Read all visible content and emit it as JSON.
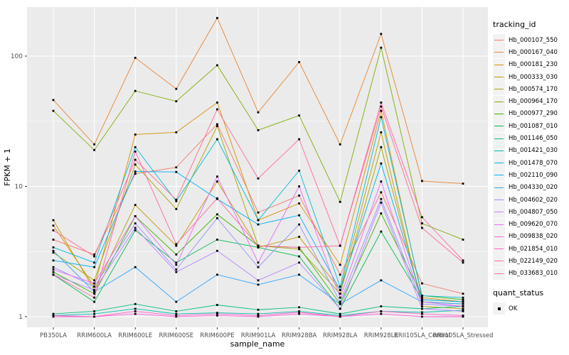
{
  "chart_data": {
    "type": "line",
    "title": "",
    "xlabel": "sample_name",
    "ylabel": "FPKM + 1",
    "y_scale": "log10",
    "y_ticks": [
      1,
      10,
      100
    ],
    "y_minor_ticks": [
      3.162,
      31.62
    ],
    "ylim": [
      1,
      230
    ],
    "grid": "on",
    "panel_bg": "#EBEBEB",
    "gridline_color": "#FFFFFF",
    "tick_label_color": "#4D4D4D",
    "point_marker": "black-square",
    "categories": [
      "PB350LA",
      "RRIM600LA",
      "RRIM600LE",
      "RRIM600SE",
      "RRIM600PE",
      "RRIM901LA",
      "RRIM928BA",
      "RRIM928LA",
      "RRIM928LE",
      "RRII105LA_Control",
      "RRII105LA_Stressed"
    ],
    "series": [
      {
        "name": "Hb_000107_550",
        "color": "#F8766D",
        "values": [
          3.9,
          3.0,
          12.5,
          14.0,
          30.0,
          6.3,
          8.5,
          2.1,
          9.0,
          1.8,
          1.5
        ]
      },
      {
        "name": "Hb_000167_040",
        "color": "#EA8331",
        "values": [
          46,
          21,
          97,
          56,
          196,
          37,
          90,
          21,
          148,
          11,
          10.5
        ]
      },
      {
        "name": "Hb_000181_230",
        "color": "#D89000",
        "values": [
          5.0,
          1.7,
          25,
          26,
          44,
          5.5,
          7.4,
          2.5,
          38,
          1.4,
          1.3
        ]
      },
      {
        "name": "Hb_000333_030",
        "color": "#C09B00",
        "values": [
          5.5,
          1.6,
          7.2,
          3.5,
          10.9,
          3.4,
          4.1,
          1.6,
          26,
          1.2,
          1.15
        ]
      },
      {
        "name": "Hb_000574_170",
        "color": "#A3A500",
        "values": [
          3.1,
          1.9,
          14.7,
          6.7,
          29,
          3.5,
          3.3,
          1.5,
          20,
          1.3,
          1.25
        ]
      },
      {
        "name": "Hb_000964_170",
        "color": "#7CAE00",
        "values": [
          38,
          19,
          54,
          45,
          85,
          27,
          35,
          7.6,
          116,
          5.2,
          3.9
        ]
      },
      {
        "name": "Hb_000977_290",
        "color": "#39B600",
        "values": [
          2.2,
          1.5,
          5.9,
          3.0,
          6.1,
          3.5,
          3.4,
          1.25,
          6.2,
          1.45,
          1.35
        ]
      },
      {
        "name": "Hb_001087_010",
        "color": "#00BB4E",
        "values": [
          2.1,
          1.3,
          4.6,
          2.6,
          3.9,
          3.4,
          2.9,
          1.15,
          4.5,
          1.35,
          1.3
        ]
      },
      {
        "name": "Hb_001146_050",
        "color": "#00C081",
        "values": [
          1.05,
          1.1,
          1.25,
          1.1,
          1.23,
          1.13,
          1.18,
          1.05,
          1.2,
          1.15,
          1.2
        ]
      },
      {
        "name": "Hb_001421_030",
        "color": "#00C0AF",
        "values": [
          1.02,
          1.05,
          1.15,
          1.05,
          1.07,
          1.05,
          1.1,
          1.02,
          1.1,
          1.08,
          1.12
        ]
      },
      {
        "name": "Hb_001478_070",
        "color": "#00BBDA",
        "values": [
          3.4,
          2.6,
          20,
          7.7,
          23,
          5.5,
          13.2,
          1.7,
          34,
          1.45,
          1.4
        ]
      },
      {
        "name": "Hb_002110_090",
        "color": "#00B0F6",
        "values": [
          2.7,
          2.4,
          13,
          12.9,
          8.0,
          5.1,
          6.0,
          1.6,
          15,
          1.35,
          1.3
        ]
      },
      {
        "name": "Hb_004330_020",
        "color": "#29A3FF",
        "values": [
          3.2,
          1.55,
          2.4,
          1.3,
          2.1,
          1.76,
          2.1,
          1.25,
          1.9,
          1.3,
          1.25
        ]
      },
      {
        "name": "Hb_004602_020",
        "color": "#9590FF",
        "values": [
          2.4,
          1.7,
          5.2,
          2.3,
          5.7,
          2.4,
          5.1,
          1.3,
          8.0,
          1.25,
          1.2
        ]
      },
      {
        "name": "Hb_004807_050",
        "color": "#B983FF",
        "values": [
          2.1,
          1.6,
          4.8,
          2.2,
          3.2,
          1.9,
          2.6,
          1.15,
          7.5,
          1.15,
          1.1
        ]
      },
      {
        "name": "Hb_009620_070",
        "color": "#E76BF3",
        "values": [
          2.3,
          1.8,
          5.9,
          2.5,
          11.9,
          2.6,
          10.0,
          1.4,
          10.9,
          1.3,
          1.2
        ]
      },
      {
        "name": "Hb_009838_020",
        "color": "#FA62DB",
        "values": [
          1.0,
          1.0,
          1.05,
          1.0,
          1.02,
          1.0,
          1.05,
          1.0,
          1.05,
          1.0,
          1.0
        ]
      },
      {
        "name": "Hb_021854_010",
        "color": "#FF61C7",
        "values": [
          1.02,
          1.0,
          1.1,
          1.02,
          1.05,
          1.02,
          1.08,
          1.0,
          1.1,
          1.05,
          1.02
        ]
      },
      {
        "name": "Hb_022149_020",
        "color": "#FF67A4",
        "values": [
          2.1,
          1.4,
          18.5,
          3.6,
          8.1,
          3.5,
          3.4,
          3.5,
          44,
          5.8,
          2.7
        ]
      },
      {
        "name": "Hb_033683_010",
        "color": "#FF6C92",
        "values": [
          4.6,
          2.9,
          16,
          7.9,
          39,
          11.5,
          23,
          3.5,
          41,
          4.8,
          2.6
        ]
      }
    ],
    "legend": {
      "position": "right",
      "color_title": "tracking_id",
      "shape_title": "quant_status",
      "shape_items": [
        {
          "label": "OK",
          "marker": "black-square"
        }
      ]
    }
  }
}
